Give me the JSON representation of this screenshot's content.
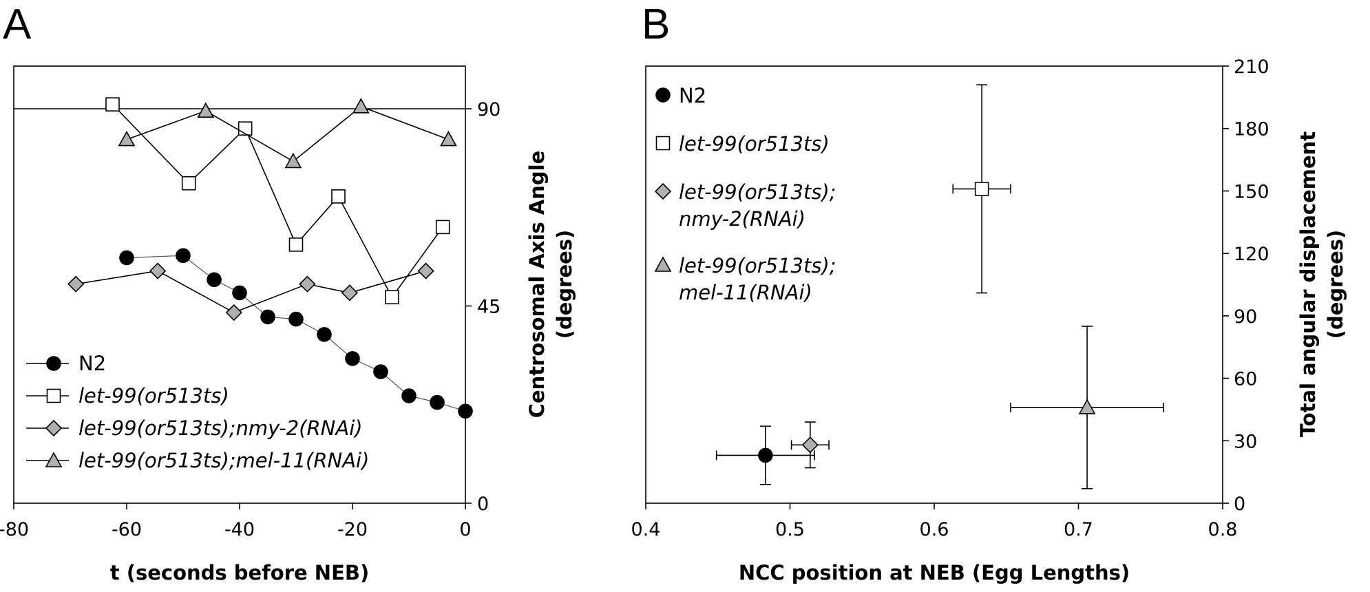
{
  "chart_data": [
    {
      "panel_label": "A",
      "type": "line",
      "xlabel": "t (seconds before NEB)",
      "ylabel_lines": [
        "Centrosomal Axis Angle",
        "(degrees)"
      ],
      "xlim": [
        -80,
        0
      ],
      "ylim": [
        0,
        90
      ],
      "xticks": [
        "-80",
        "-60",
        "-40",
        "-20",
        "0"
      ],
      "yticks": [
        "0",
        "45",
        "90"
      ],
      "y_axis_side": "right",
      "reference_line_y": 90,
      "legend_position": "bottom-left",
      "series": [
        {
          "name": "N2",
          "marker": "circle",
          "fill": "#000000",
          "x": [
            -60,
            -50,
            -44.5,
            -40,
            -35,
            -30,
            -25,
            -20,
            -15,
            -10,
            -5,
            0
          ],
          "y": [
            56,
            56.5,
            51,
            48,
            42.5,
            42,
            38.5,
            33,
            30,
            24.5,
            23,
            21
          ]
        },
        {
          "name": "let-99(or513ts)",
          "marker": "square",
          "fill": "#ffffff",
          "x": [
            -62.5,
            -49,
            -39,
            -30,
            -22.5,
            -13,
            -4
          ],
          "y": [
            91,
            73,
            85.5,
            59,
            70,
            47,
            63
          ]
        },
        {
          "name": "let-99(or513ts);nmy-2(RNAi)",
          "marker": "diamond",
          "fill": "#b0b0b0",
          "x": [
            -69,
            -54.5,
            -41,
            -28,
            -20.5,
            -7
          ],
          "y": [
            50,
            53,
            43.5,
            50,
            48,
            53
          ]
        },
        {
          "name": "let-99(or513ts);mel-11(RNAi)",
          "marker": "triangle",
          "fill": "#b0b0b0",
          "x": [
            -60,
            -46,
            -30.5,
            -18.5,
            -3
          ],
          "y": [
            83,
            89.5,
            78,
            90.5,
            83
          ]
        }
      ],
      "legend": [
        {
          "label": "N2",
          "italic": false
        },
        {
          "label": "let-99(or513ts)",
          "italic": true
        },
        {
          "label": "let-99(or513ts);nmy-2(RNAi)",
          "italic": true
        },
        {
          "label": "let-99(or513ts);mel-11(RNAi)",
          "italic": true
        }
      ]
    },
    {
      "panel_label": "B",
      "type": "scatter",
      "xlabel": "NCC position at NEB (Egg Lengths)",
      "ylabel_lines": [
        "Total angular displacement",
        "(degrees)"
      ],
      "xlim": [
        0.4,
        0.8
      ],
      "ylim": [
        0,
        210
      ],
      "xticks": [
        "0.4",
        "0.5",
        "0.6",
        "0.7",
        "0.8"
      ],
      "yticks": [
        "0",
        "30",
        "60",
        "90",
        "120",
        "150",
        "180",
        "210"
      ],
      "y_axis_side": "right",
      "legend_position": "top-left",
      "points": [
        {
          "name": "N2",
          "marker": "circle",
          "fill": "#000000",
          "x": 0.483,
          "y": 23,
          "xerr": 0.034,
          "yerr": 14
        },
        {
          "name": "let-99(or513ts)",
          "marker": "square",
          "fill": "#ffffff",
          "x": 0.633,
          "y": 151,
          "xerr": 0.02,
          "yerr": 50
        },
        {
          "name": "let-99(or513ts); nmy-2(RNAi)",
          "marker": "diamond",
          "fill": "#b0b0b0",
          "x": 0.514,
          "y": 28,
          "xerr": 0.013,
          "yerr": 11
        },
        {
          "name": "let-99(or513ts); mel-11(RNAi)",
          "marker": "triangle",
          "fill": "#b0b0b0",
          "x": 0.706,
          "y": 46,
          "xerr": 0.053,
          "yerr": 39
        }
      ],
      "legend": [
        {
          "lines": [
            "N2"
          ],
          "italic": false
        },
        {
          "lines": [
            "let-99(or513ts)"
          ],
          "italic": true
        },
        {
          "lines": [
            "let-99(or513ts);",
            "nmy-2(RNAi)"
          ],
          "italic": true
        },
        {
          "lines": [
            "let-99(or513ts);",
            "mel-11(RNAi)"
          ],
          "italic": true
        }
      ]
    }
  ]
}
